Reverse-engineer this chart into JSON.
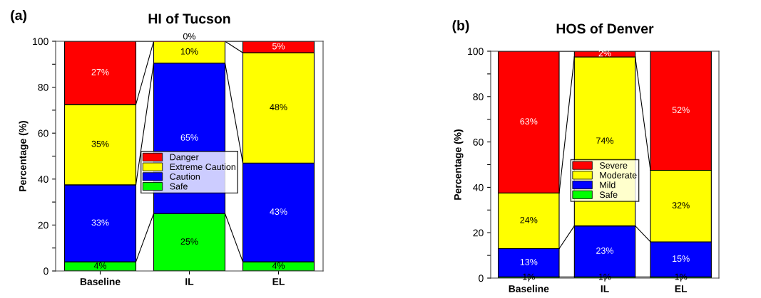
{
  "chart_data": [
    {
      "type": "bar",
      "title": "HI of Tucson",
      "ylabel": "Percentage (%)",
      "annotations": [
        "(a)"
      ],
      "stacked": true,
      "categories": [
        "Baseline",
        "IL",
        "EL"
      ],
      "series": [
        {
          "name": "Safe",
          "color": "#00ff00",
          "values": [
            4,
            25,
            4
          ],
          "value_labels": [
            "4%",
            "25%",
            "4%"
          ]
        },
        {
          "name": "Caution",
          "color": "#0000ff",
          "values": [
            33.5,
            65.5,
            43
          ],
          "value_labels": [
            "33%",
            "65%",
            "43%"
          ]
        },
        {
          "name": "Extreme Caution",
          "color": "#ffff00",
          "values": [
            35,
            9.5,
            48
          ],
          "value_labels": [
            "35%",
            "10%",
            "48%"
          ]
        },
        {
          "name": "Danger",
          "color": "#ff0000",
          "values": [
            27.5,
            0,
            5
          ],
          "value_labels": [
            "27%",
            "0%",
            "5%"
          ]
        }
      ],
      "ylim": [
        0,
        100
      ],
      "yticks": [
        0,
        {
          "value": 10,
          "label": null
        },
        20,
        {
          "value": 30,
          "label": null
        },
        40,
        {
          "value": 50,
          "label": null
        },
        60,
        {
          "value": 70,
          "label": null
        },
        80,
        {
          "value": 90,
          "label": null
        },
        100
      ],
      "legend": "center",
      "grid": false
    },
    {
      "type": "bar",
      "title": "HOS of Denver",
      "ylabel": "Percentage (%)",
      "annotations": [
        "(b)"
      ],
      "stacked": true,
      "categories": [
        "Baseline",
        "IL",
        "EL"
      ],
      "series": [
        {
          "name": "Safe",
          "color": "#00ff00",
          "values": [
            0.5,
            0.5,
            0.5
          ],
          "value_labels": [
            "1%",
            "1%",
            "1%"
          ]
        },
        {
          "name": "Mild",
          "color": "#0000ff",
          "values": [
            12.5,
            22.5,
            15.5
          ],
          "value_labels": [
            "13%",
            "23%",
            "15%"
          ]
        },
        {
          "name": "Moderate",
          "color": "#ffff00",
          "values": [
            24.5,
            74.5,
            31.5
          ],
          "value_labels": [
            "24%",
            "74%",
            "32%"
          ]
        },
        {
          "name": "Severe",
          "color": "#ff0000",
          "values": [
            62.5,
            2.5,
            52.5
          ],
          "value_labels": [
            "63%",
            "2%",
            "52%"
          ]
        }
      ],
      "ylim": [
        0,
        100
      ],
      "yticks": [
        0,
        {
          "value": 10,
          "label": null
        },
        20,
        {
          "value": 30,
          "label": null
        },
        40,
        {
          "value": 50,
          "label": null
        },
        60,
        {
          "value": 70,
          "label": null
        },
        80,
        {
          "value": 90,
          "label": null
        },
        100
      ],
      "legend": "center",
      "grid": false
    }
  ]
}
